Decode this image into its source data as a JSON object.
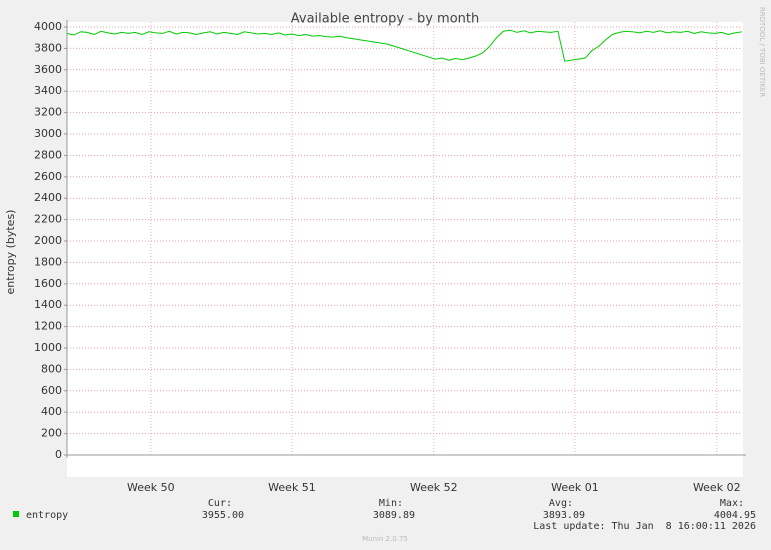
{
  "chart_data": {
    "type": "line",
    "title": "Available entropy - by month",
    "y_label": "entropy (bytes)",
    "credit": "RRDTOOL / TOBI OETIKER",
    "footer": "Munin 2.0.75",
    "last_update": "Last update: Thu Jan  8 16:00:11 2026",
    "legend_stats": [
      {
        "label": "Cur:",
        "value": "3955.00"
      },
      {
        "label": "Min:",
        "value": "3089.89"
      },
      {
        "label": "Avg:",
        "value": "3893.09"
      },
      {
        "label": "Max:",
        "value": "4004.95"
      }
    ],
    "xlim": [
      0,
      99
    ],
    "xticks": [
      {
        "value": 12.3,
        "label": "Week 50"
      },
      {
        "value": 33,
        "label": "Week 51"
      },
      {
        "value": 53.8,
        "label": "Week 52"
      },
      {
        "value": 74.5,
        "label": "Week 01"
      },
      {
        "value": 95.3,
        "label": "Week 02"
      }
    ],
    "ylim": [
      0,
      4000
    ],
    "yticks": [
      0,
      200,
      400,
      600,
      800,
      1000,
      1200,
      1400,
      1600,
      1800,
      2000,
      2200,
      2400,
      2600,
      2800,
      3000,
      3200,
      3400,
      3600,
      3800,
      4000
    ],
    "grid": true,
    "series": [
      {
        "name": "entropy",
        "color": "#00cc00",
        "values": [
          3940,
          3925,
          3955,
          3950,
          3930,
          3960,
          3945,
          3935,
          3950,
          3940,
          3950,
          3930,
          3955,
          3945,
          3940,
          3960,
          3935,
          3950,
          3945,
          3930,
          3945,
          3955,
          3935,
          3950,
          3940,
          3930,
          3955,
          3945,
          3935,
          3940,
          3930,
          3945,
          3925,
          3935,
          3920,
          3930,
          3915,
          3920,
          3910,
          3905,
          3915,
          3900,
          3890,
          3880,
          3870,
          3860,
          3850,
          3840,
          3820,
          3800,
          3780,
          3760,
          3740,
          3720,
          3700,
          3710,
          3690,
          3705,
          3695,
          3710,
          3730,
          3760,
          3820,
          3900,
          3960,
          3970,
          3950,
          3965,
          3945,
          3960,
          3955,
          3950,
          3960,
          3680,
          3690,
          3700,
          3710,
          3780,
          3820,
          3880,
          3930,
          3950,
          3960,
          3955,
          3945,
          3960,
          3950,
          3965,
          3945,
          3955,
          3950,
          3960,
          3940,
          3955,
          3945,
          3940,
          3950,
          3930,
          3945,
          3955
        ]
      }
    ]
  }
}
